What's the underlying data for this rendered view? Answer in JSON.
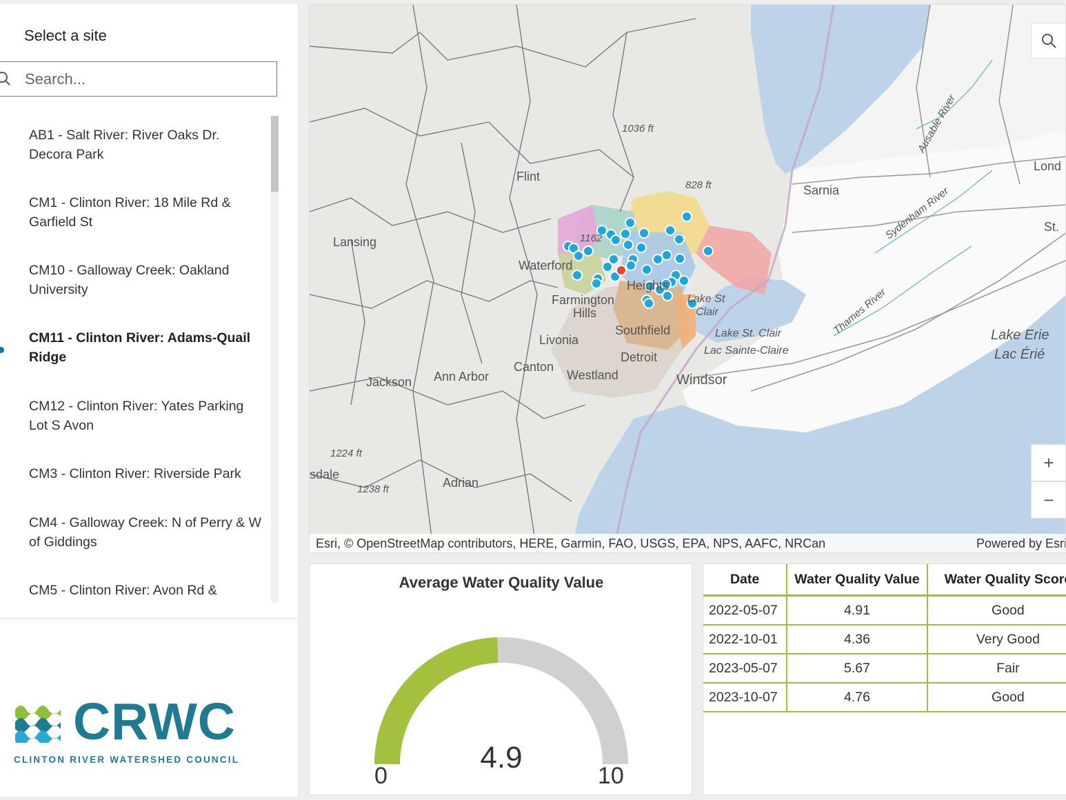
{
  "sidebar": {
    "title": "Select a site",
    "search_placeholder": "Search...",
    "sites": [
      {
        "label": "AB1 - Salt River: River Oaks Dr. Decora Park",
        "selected": false
      },
      {
        "label": "CM1 - Clinton River: 18 Mile Rd & Garfield St",
        "selected": false
      },
      {
        "label": "CM10 - Galloway Creek: Oakland University",
        "selected": false
      },
      {
        "label": "CM11 - Clinton River: Adams-Quail Ridge",
        "selected": true
      },
      {
        "label": "CM12 - Clinton River: Yates Parking Lot S Avon",
        "selected": false
      },
      {
        "label": "CM3 - Clinton River: Riverside Park",
        "selected": false
      },
      {
        "label": "CM4 - Galloway Creek: N of Perry & W of Giddings",
        "selected": false
      },
      {
        "label": "CM5 - Clinton River: Avon Rd &",
        "selected": false
      }
    ]
  },
  "logo": {
    "name": "CRWC",
    "subtitle": "CLINTON RIVER WATERSHED COUNCIL",
    "color": "#1f7a93"
  },
  "map": {
    "labels": {
      "flint": "Flint",
      "lansing": "Lansing",
      "waterford": "Waterford",
      "farmington": "Farmington",
      "hills": "Hills",
      "heights": "Heights",
      "southfield": "Southfield",
      "livonia": "Livonia",
      "canton": "Canton",
      "westland": "Westland",
      "detroit": "Detroit",
      "windsor": "Windsor",
      "jackson": "Jackson",
      "ann_arbor": "Ann Arbor",
      "adrian": "Adrian",
      "sdale": "sdale",
      "sarnia": "Sarnia",
      "lond": "Lond",
      "st": "St.",
      "lake_st_clair_small_1": "Lake St",
      "lake_st_clair_small_2": "Clair",
      "lake_st_clair": "Lake St. Clair",
      "lac_sainte_claire": "Lac Sainte-Claire",
      "lake_erie": "Lake Erie",
      "lac_erie": "Lac Érié",
      "elev_1036": "1036 ft",
      "elev_828": "828 ft",
      "elev_1224": "1224 ft",
      "elev_1238": "1238 ft",
      "elev_1162": "1162",
      "sydenham_river": "Sydenham River",
      "thames_river": "Thames River",
      "ausable_river": "Ausable River"
    },
    "attribution": "Esri, © OpenStreetMap contributors, HERE, Garmin, FAO, USGS, EPA, NPS, AAFC, NRCan",
    "powered_by": "Powered by Esri",
    "zoom_in": "+",
    "zoom_out": "−",
    "marker_color": "#1ea7dd",
    "selected_marker_color": "#e8462a"
  },
  "gauge": {
    "title": "Average Water Quality Value",
    "value": 4.9,
    "value_label": "4.9",
    "min": 0,
    "max": 10,
    "min_label": "0",
    "max_label": "10",
    "fill_color": "#a3c13c",
    "track_color": "#d0d0d0"
  },
  "table": {
    "columns": [
      "Date",
      "Water Quality Value",
      "Water Quality Score"
    ],
    "rows": [
      [
        "2022-05-07",
        "4.91",
        "Good"
      ],
      [
        "2022-10-01",
        "4.36",
        "Very Good"
      ],
      [
        "2023-05-07",
        "5.67",
        "Fair"
      ],
      [
        "2023-10-07",
        "4.76",
        "Good"
      ]
    ]
  }
}
